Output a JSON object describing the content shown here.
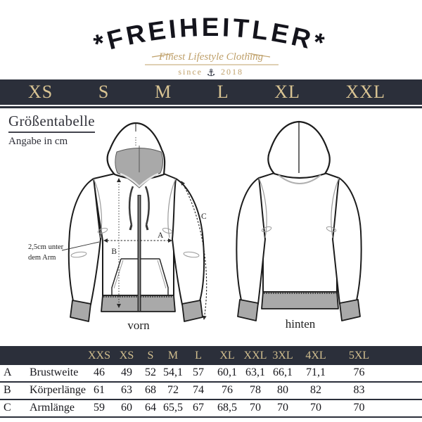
{
  "logo": {
    "brand_text": "*FREIHEITLER*",
    "tagline": "Finest Lifestyle Clothing",
    "since_label": "since",
    "since_year": "2018",
    "anchor_icon": "⚓"
  },
  "size_banner": {
    "sizes": [
      "XS",
      "S",
      "M",
      "L",
      "XL",
      "XXL"
    ]
  },
  "heading": {
    "title": "Größentabelle",
    "subtitle": "Angabe in cm"
  },
  "diagram": {
    "front_label": "vorn",
    "back_label": "hinten",
    "underarm_note_line1": "2,5cm unter",
    "underarm_note_line2": "dem Arm",
    "measure_labels": {
      "a": "A",
      "b": "B",
      "c": "C"
    }
  },
  "size_table": {
    "column_headers": [
      "XXS",
      "XS",
      "S",
      "M",
      "L",
      "XL",
      "XXL",
      "3XL",
      "4XL",
      "5XL"
    ],
    "rows": [
      {
        "key": "A",
        "label": "Brustweite",
        "values": [
          "46",
          "49",
          "52",
          "54,1",
          "57",
          "60,1",
          "63,1",
          "66,1",
          "71,1",
          "76"
        ]
      },
      {
        "key": "B",
        "label": "Körperlänge",
        "values": [
          "61",
          "63",
          "68",
          "72",
          "74",
          "76",
          "78",
          "80",
          "82",
          "83"
        ]
      },
      {
        "key": "C",
        "label": "Armlänge",
        "values": [
          "59",
          "60",
          "64",
          "65,5",
          "67",
          "68,5",
          "70",
          "70",
          "70",
          "70"
        ]
      }
    ]
  },
  "colors": {
    "navy": "#2b2f3a",
    "banner_gold": "#d9c493",
    "logo_gold": "#bfa06a",
    "garment_gray": "#a9a9a9"
  }
}
